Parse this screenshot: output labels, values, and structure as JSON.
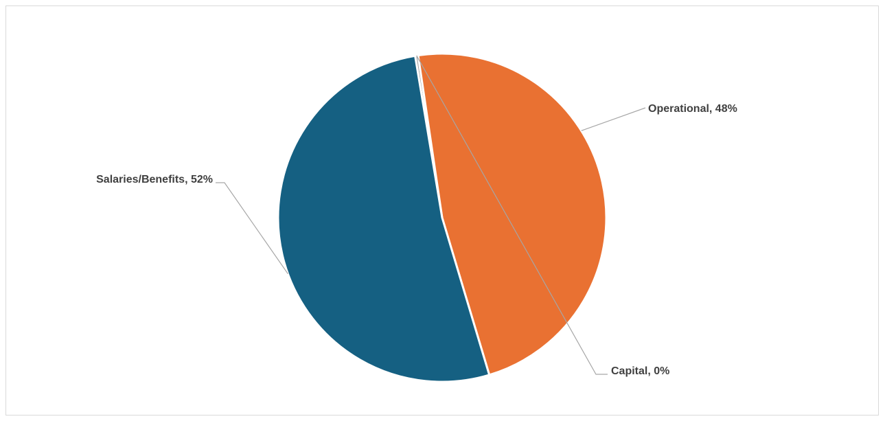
{
  "chart_data": {
    "type": "pie",
    "title": "",
    "categories": [
      "Capital",
      "Operational",
      "Salaries/Benefits"
    ],
    "values": [
      0.3,
      47.7,
      52.0
    ],
    "percent_labels": [
      "0%",
      "48%",
      "52%"
    ],
    "colors": [
      "#A5A5A5",
      "#E97132",
      "#156082"
    ],
    "data_labels": [
      "Capital, 0%",
      "Operational, 48%",
      "Salaries/Benefits, 52%"
    ],
    "legend": "none",
    "start_angle_deg": -9.5,
    "direction": "clockwise"
  }
}
